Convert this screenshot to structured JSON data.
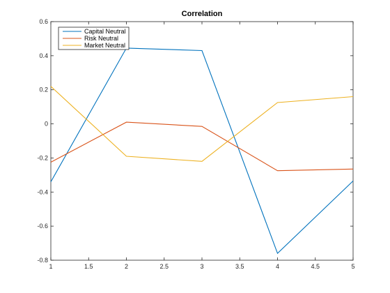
{
  "chart_data": {
    "type": "line",
    "title": "Correlation",
    "xlabel": "",
    "ylabel": "",
    "xlim": [
      1,
      5
    ],
    "ylim": [
      -0.8,
      0.6
    ],
    "xticks": [
      1,
      1.5,
      2,
      2.5,
      3,
      3.5,
      4,
      4.5,
      5
    ],
    "xtick_labels": [
      "1",
      "1.5",
      "2",
      "2.5",
      "3",
      "3.5",
      "4",
      "4.5",
      "5"
    ],
    "yticks": [
      -0.8,
      -0.6,
      -0.4,
      -0.2,
      0,
      0.2,
      0.4,
      0.6
    ],
    "ytick_labels": [
      "-0.8",
      "-0.6",
      "-0.4",
      "-0.2",
      "0",
      "0.2",
      "0.4",
      "0.6"
    ],
    "grid": false,
    "legend_position": "top-left",
    "x": [
      1,
      2,
      3,
      4,
      5
    ],
    "series": [
      {
        "name": "Capital Neutral",
        "color": "#0072BD",
        "values": [
          -0.34,
          0.445,
          0.43,
          -0.76,
          -0.335
        ]
      },
      {
        "name": "Risk Neutral",
        "color": "#D95319",
        "values": [
          -0.225,
          0.01,
          -0.015,
          -0.275,
          -0.265
        ]
      },
      {
        "name": "Market Neutral",
        "color": "#EDB120",
        "values": [
          0.22,
          -0.19,
          -0.22,
          0.125,
          0.16
        ]
      }
    ]
  }
}
